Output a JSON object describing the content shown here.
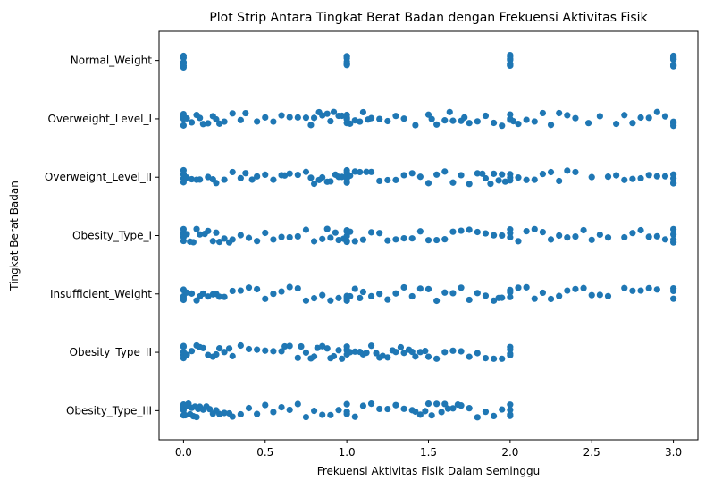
{
  "chart_data": {
    "type": "scatter",
    "subtype": "strip",
    "title": "Plot Strip Antara Tingkat Berat Badan dengan Frekuensi Aktivitas Fisik",
    "xlabel": "Frekuensi Aktivitas Fisik Dalam Seminggu",
    "ylabel": "Tingkat Berat Badan",
    "xlim": [
      -0.15,
      3.15
    ],
    "xticks": [
      0.0,
      0.5,
      1.0,
      1.5,
      2.0,
      2.5,
      3.0
    ],
    "xtick_labels": [
      "0.0",
      "0.5",
      "1.0",
      "1.5",
      "2.0",
      "2.5",
      "3.0"
    ],
    "grid": false,
    "color": "#1f77b4",
    "categories": [
      "Normal_Weight",
      "Overweight_Level_I",
      "Overweight_Level_II",
      "Obesity_Type_I",
      "Insufficient_Weight",
      "Obesity_Type_II",
      "Obesity_Type_III"
    ],
    "series": [
      {
        "category": "Normal_Weight",
        "x": [
          0,
          0,
          0,
          0,
          0,
          0,
          0,
          0,
          1,
          1,
          1,
          1,
          1,
          1,
          1,
          1,
          2,
          2,
          2,
          2,
          2,
          2,
          2,
          2,
          3,
          3,
          3,
          3,
          3,
          3,
          3,
          3
        ]
      },
      {
        "category": "Overweight_Level_I",
        "x": [
          0,
          0,
          0,
          0,
          0,
          0.02,
          0.05,
          0.08,
          0.1,
          0.12,
          0.15,
          0.18,
          0.2,
          0.22,
          0.25,
          0.3,
          0.35,
          0.38,
          0.45,
          0.5,
          0.55,
          0.6,
          0.65,
          0.7,
          0.75,
          0.78,
          0.8,
          0.83,
          0.85,
          0.88,
          0.9,
          0.92,
          0.95,
          0.97,
          1,
          1,
          1,
          1,
          1,
          1.02,
          1.05,
          1.08,
          1.1,
          1.13,
          1.15,
          1.2,
          1.25,
          1.3,
          1.35,
          1.42,
          1.5,
          1.52,
          1.55,
          1.6,
          1.63,
          1.65,
          1.7,
          1.72,
          1.75,
          1.8,
          1.85,
          1.9,
          1.95,
          2,
          2,
          2,
          2.02,
          2.05,
          2.1,
          2.15,
          2.2,
          2.25,
          2.3,
          2.35,
          2.4,
          2.48,
          2.55,
          2.65,
          2.7,
          2.75,
          2.8,
          2.85,
          2.9,
          2.95,
          3,
          3,
          3,
          3
        ]
      },
      {
        "category": "Overweight_Level_II",
        "x": [
          0,
          0,
          0,
          0,
          0,
          0.02,
          0.05,
          0.08,
          0.1,
          0.15,
          0.18,
          0.2,
          0.25,
          0.3,
          0.35,
          0.38,
          0.42,
          0.45,
          0.5,
          0.55,
          0.6,
          0.62,
          0.65,
          0.7,
          0.75,
          0.78,
          0.8,
          0.83,
          0.85,
          0.88,
          0.9,
          0.93,
          0.95,
          0.97,
          1,
          1,
          1,
          1,
          1,
          1.02,
          1.05,
          1.08,
          1.12,
          1.15,
          1.2,
          1.25,
          1.3,
          1.35,
          1.4,
          1.45,
          1.5,
          1.55,
          1.6,
          1.65,
          1.7,
          1.75,
          1.8,
          1.83,
          1.85,
          1.88,
          1.9,
          1.93,
          1.95,
          1.97,
          2,
          2,
          2,
          2.05,
          2.1,
          2.15,
          2.2,
          2.25,
          2.3,
          2.35,
          2.4,
          2.5,
          2.6,
          2.65,
          2.7,
          2.75,
          2.8,
          2.85,
          2.9,
          2.95,
          3,
          3,
          3,
          3
        ]
      },
      {
        "category": "Obesity_Type_I",
        "x": [
          0,
          0,
          0,
          0,
          0,
          0,
          0.02,
          0.04,
          0.06,
          0.08,
          0.1,
          0.13,
          0.15,
          0.18,
          0.2,
          0.22,
          0.25,
          0.28,
          0.3,
          0.35,
          0.4,
          0.45,
          0.5,
          0.55,
          0.6,
          0.65,
          0.7,
          0.75,
          0.8,
          0.85,
          0.88,
          0.9,
          0.93,
          0.95,
          0.98,
          1,
          1,
          1,
          1,
          1,
          1.02,
          1.05,
          1.1,
          1.15,
          1.2,
          1.25,
          1.3,
          1.35,
          1.4,
          1.45,
          1.5,
          1.55,
          1.6,
          1.65,
          1.7,
          1.75,
          1.8,
          1.85,
          1.9,
          1.95,
          2,
          2,
          2,
          2.05,
          2.1,
          2.15,
          2.2,
          2.25,
          2.3,
          2.35,
          2.4,
          2.45,
          2.5,
          2.55,
          2.6,
          2.7,
          2.75,
          2.8,
          2.85,
          2.9,
          2.95,
          3,
          3,
          3,
          3
        ]
      },
      {
        "category": "Insufficient_Weight",
        "x": [
          0,
          0,
          0,
          0,
          0,
          0.02,
          0.05,
          0.08,
          0.1,
          0.12,
          0.15,
          0.18,
          0.2,
          0.22,
          0.25,
          0.3,
          0.35,
          0.4,
          0.45,
          0.5,
          0.55,
          0.6,
          0.65,
          0.7,
          0.75,
          0.8,
          0.85,
          0.9,
          0.95,
          1,
          1,
          1,
          1,
          1.02,
          1.05,
          1.08,
          1.1,
          1.15,
          1.2,
          1.25,
          1.3,
          1.35,
          1.4,
          1.45,
          1.5,
          1.55,
          1.6,
          1.65,
          1.7,
          1.75,
          1.8,
          1.85,
          1.9,
          1.93,
          1.95,
          2,
          2,
          2,
          2.05,
          2.1,
          2.15,
          2.2,
          2.25,
          2.3,
          2.35,
          2.4,
          2.45,
          2.5,
          2.55,
          2.6,
          2.7,
          2.75,
          2.8,
          2.85,
          2.9,
          3,
          3,
          3
        ]
      },
      {
        "category": "Obesity_Type_II",
        "x": [
          0,
          0,
          0,
          0,
          0,
          0.02,
          0.05,
          0.08,
          0.1,
          0.12,
          0.15,
          0.18,
          0.2,
          0.22,
          0.25,
          0.28,
          0.3,
          0.35,
          0.4,
          0.45,
          0.5,
          0.55,
          0.6,
          0.62,
          0.65,
          0.7,
          0.72,
          0.75,
          0.78,
          0.8,
          0.82,
          0.85,
          0.88,
          0.9,
          0.92,
          0.95,
          0.97,
          1,
          1,
          1,
          1,
          1.02,
          1.05,
          1.08,
          1.1,
          1.12,
          1.15,
          1.18,
          1.2,
          1.22,
          1.25,
          1.28,
          1.3,
          1.33,
          1.35,
          1.38,
          1.4,
          1.42,
          1.45,
          1.48,
          1.5,
          1.55,
          1.6,
          1.65,
          1.7,
          1.75,
          1.8,
          1.85,
          1.9,
          1.95,
          2,
          2,
          2,
          2
        ]
      },
      {
        "category": "Obesity_Type_III",
        "x": [
          0,
          0,
          0,
          0,
          0,
          0,
          0.01,
          0.02,
          0.03,
          0.04,
          0.05,
          0.06,
          0.07,
          0.08,
          0.09,
          0.1,
          0.12,
          0.14,
          0.16,
          0.18,
          0.2,
          0.22,
          0.25,
          0.28,
          0.3,
          0.35,
          0.4,
          0.45,
          0.5,
          0.55,
          0.6,
          0.65,
          0.7,
          0.75,
          0.8,
          0.85,
          0.9,
          0.95,
          1,
          1,
          1,
          1.05,
          1.1,
          1.15,
          1.2,
          1.25,
          1.3,
          1.35,
          1.4,
          1.42,
          1.45,
          1.48,
          1.5,
          1.52,
          1.55,
          1.58,
          1.6,
          1.62,
          1.65,
          1.68,
          1.7,
          1.75,
          1.8,
          1.85,
          1.9,
          1.95,
          2,
          2,
          2,
          2
        ]
      }
    ]
  }
}
